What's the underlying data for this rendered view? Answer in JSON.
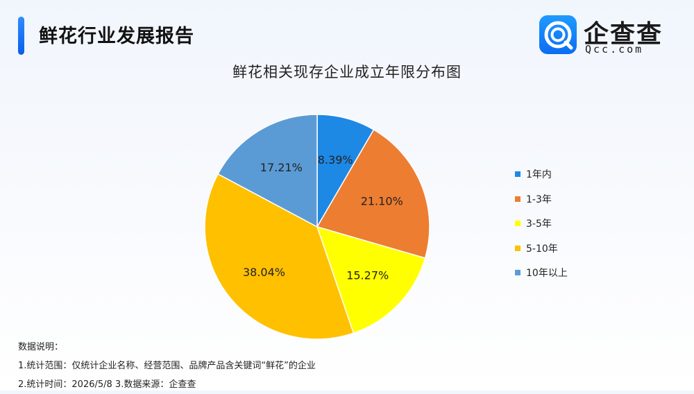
{
  "header": {
    "title": "鲜花行业发展报告",
    "accent_color": "#1677ff"
  },
  "logo": {
    "name_cn": "企查查",
    "name_en": "Qcc.com",
    "icon": "qcc-logo-icon"
  },
  "chart_data": {
    "type": "pie",
    "title": "鲜花相关现存企业成立年限分布图",
    "start_angle_deg": 0,
    "direction": "clockwise",
    "legend_position": "right",
    "slices": [
      {
        "label": "1年内",
        "value": 8.39,
        "display": "8.39%",
        "color": "#1E88E5"
      },
      {
        "label": "1-3年",
        "value": 21.1,
        "display": "21.10%",
        "color": "#ED7D31"
      },
      {
        "label": "3-5年",
        "value": 15.27,
        "display": "15.27%",
        "color": "#FFFF00"
      },
      {
        "label": "5-10年",
        "value": 38.04,
        "display": "38.04%",
        "color": "#FFC000"
      },
      {
        "label": "10年以上",
        "value": 17.21,
        "display": "17.21%",
        "color": "#5B9BD5"
      }
    ]
  },
  "notes": {
    "heading": "数据说明：",
    "line1": "1.统计范围：仅统计企业名称、经营范围、品牌产品含关键词“鲜花”的企业",
    "line2": "2.统计时间：2026/5/8  3.数据来源：企查查"
  }
}
